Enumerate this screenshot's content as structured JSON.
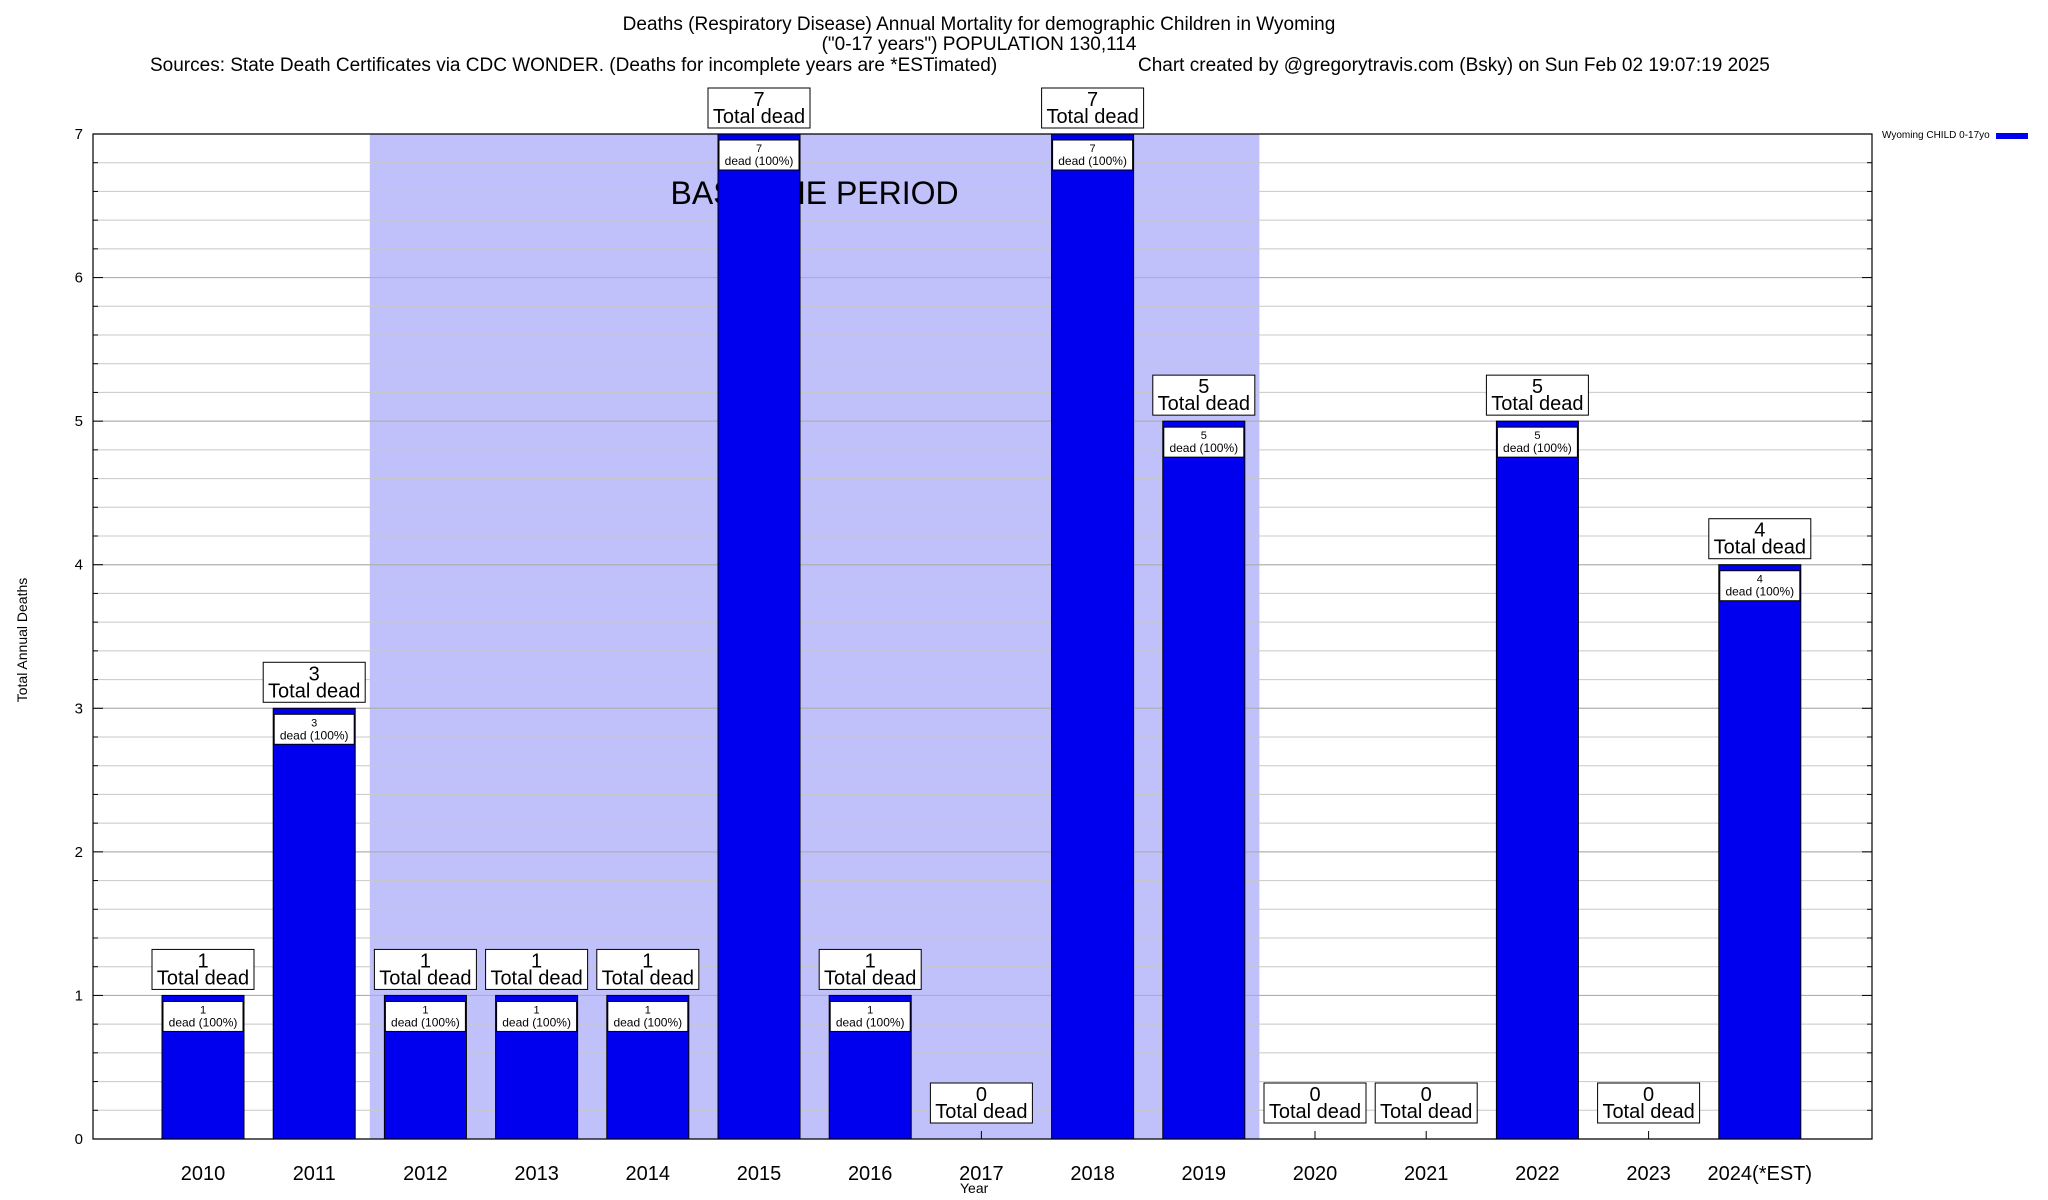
{
  "chart_data": {
    "type": "bar",
    "title": "Deaths (Respiratory Disease) Annual Mortality for demographic Children in Wyoming",
    "subtitle": "(\"0-17 years\") POPULATION 130,114",
    "source": "Sources: State Death Certificates via CDC WONDER. (Deaths for incomplete years are *ESTimated)",
    "credit": "Chart created by @gregorytravis.com (Bsky) on Sun Feb 02 19:07:19 2025",
    "xlabel": "Year",
    "ylabel": "Total Annual Deaths",
    "ylim": [
      0,
      7
    ],
    "yticks": [
      0,
      1,
      2,
      3,
      4,
      5,
      6,
      7
    ],
    "categories": [
      "2010",
      "2011",
      "2012",
      "2013",
      "2014",
      "2015",
      "2016",
      "2017",
      "2018",
      "2019",
      "2020",
      "2021",
      "2022",
      "2023",
      "2024(*EST)"
    ],
    "series": [
      {
        "name": "Wyoming CHILD 0-17yo",
        "color": "#0000ee",
        "values": [
          1,
          3,
          1,
          1,
          1,
          7,
          1,
          0,
          7,
          5,
          0,
          0,
          5,
          0,
          4
        ]
      }
    ],
    "top_label_text": "Total dead",
    "inner_label_text": "dead (100%)",
    "baseline_period": {
      "label": "BASELINE PERIOD",
      "start": "2012",
      "end": "2019",
      "color": "#c0c0fb"
    },
    "grid": true,
    "legend_position": "top-right"
  }
}
